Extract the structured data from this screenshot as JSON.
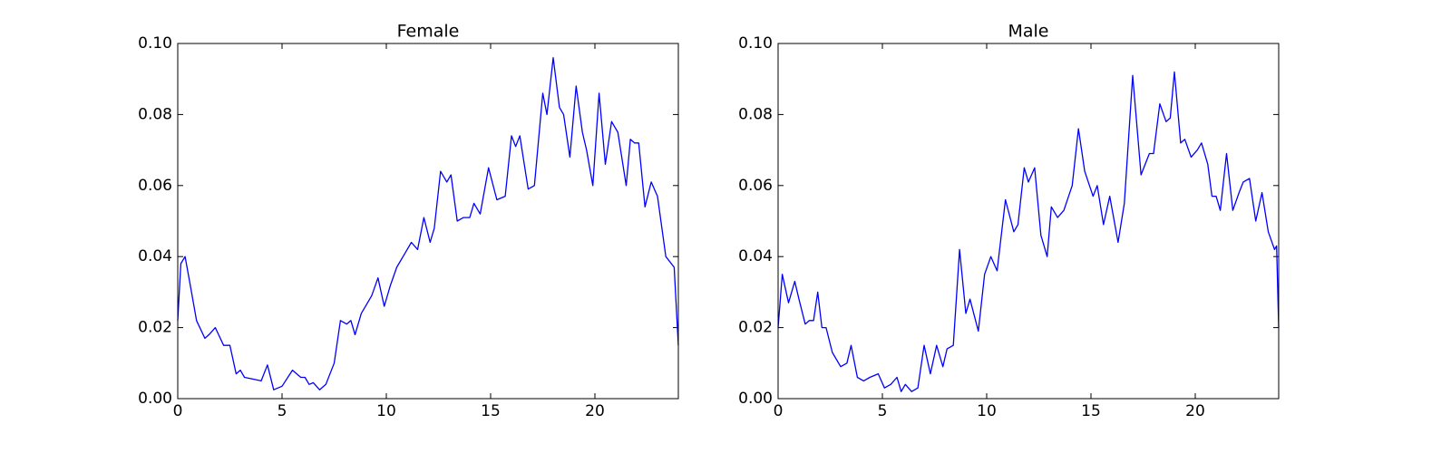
{
  "chart_data": [
    {
      "type": "line",
      "title": "Female",
      "color": "#0000ff",
      "xlim": [
        0,
        24
      ],
      "ylim": [
        0,
        0.1
      ],
      "xticks": [
        0,
        5,
        10,
        15,
        20
      ],
      "yticks": [
        {
          "value": 0,
          "label": "0.00"
        },
        {
          "value": 0.02,
          "label": "0.02"
        },
        {
          "value": 0.04,
          "label": "0.04"
        },
        {
          "value": 0.06,
          "label": "0.06"
        },
        {
          "value": 0.08,
          "label": "0.08"
        },
        {
          "value": 0.1,
          "label": "0.10"
        }
      ],
      "x": [
        0,
        0.15,
        0.35,
        0.6,
        0.9,
        1.3,
        1.5,
        1.8,
        2.2,
        2.5,
        2.8,
        3.0,
        3.2,
        3.6,
        4.0,
        4.3,
        4.6,
        5.0,
        5.5,
        5.9,
        6.1,
        6.3,
        6.5,
        6.8,
        7.1,
        7.5,
        7.8,
        8.1,
        8.3,
        8.5,
        8.8,
        9.1,
        9.3,
        9.6,
        9.9,
        10.2,
        10.5,
        10.9,
        11.2,
        11.5,
        11.8,
        12.1,
        12.3,
        12.6,
        12.9,
        13.1,
        13.4,
        13.7,
        14.0,
        14.2,
        14.5,
        14.9,
        15.3,
        15.7,
        16.0,
        16.2,
        16.4,
        16.8,
        17.1,
        17.5,
        17.7,
        18.0,
        18.3,
        18.5,
        18.8,
        19.1,
        19.4,
        19.6,
        19.9,
        20.2,
        20.5,
        20.8,
        21.1,
        21.5,
        21.7,
        21.9,
        22.1,
        22.4,
        22.7,
        23.0,
        23.4,
        23.8,
        24.0
      ],
      "values": [
        0.022,
        0.038,
        0.04,
        0.032,
        0.022,
        0.017,
        0.018,
        0.02,
        0.015,
        0.015,
        0.007,
        0.008,
        0.006,
        0.0055,
        0.005,
        0.0095,
        0.0025,
        0.0035,
        0.008,
        0.006,
        0.006,
        0.004,
        0.0045,
        0.0025,
        0.004,
        0.01,
        0.022,
        0.021,
        0.022,
        0.018,
        0.024,
        0.027,
        0.029,
        0.034,
        0.026,
        0.032,
        0.037,
        0.041,
        0.044,
        0.042,
        0.051,
        0.044,
        0.048,
        0.064,
        0.061,
        0.063,
        0.05,
        0.051,
        0.051,
        0.055,
        0.052,
        0.065,
        0.056,
        0.057,
        0.074,
        0.071,
        0.074,
        0.059,
        0.06,
        0.086,
        0.08,
        0.096,
        0.082,
        0.08,
        0.068,
        0.088,
        0.075,
        0.07,
        0.06,
        0.086,
        0.066,
        0.078,
        0.075,
        0.06,
        0.073,
        0.072,
        0.072,
        0.054,
        0.061,
        0.057,
        0.04,
        0.037,
        0.015
      ]
    },
    {
      "type": "line",
      "title": "Male",
      "color": "#0000ff",
      "xlim": [
        0,
        24
      ],
      "ylim": [
        0,
        0.1
      ],
      "xticks": [
        0,
        5,
        10,
        15,
        20
      ],
      "yticks": [
        {
          "value": 0,
          "label": "0.00"
        },
        {
          "value": 0.02,
          "label": "0.02"
        },
        {
          "value": 0.04,
          "label": "0.04"
        },
        {
          "value": 0.06,
          "label": "0.06"
        },
        {
          "value": 0.08,
          "label": "0.08"
        },
        {
          "value": 0.1,
          "label": "0.10"
        }
      ],
      "x": [
        0,
        0.2,
        0.5,
        0.8,
        1.0,
        1.3,
        1.5,
        1.7,
        1.9,
        2.1,
        2.3,
        2.6,
        3.0,
        3.3,
        3.5,
        3.8,
        4.1,
        4.4,
        4.8,
        5.1,
        5.4,
        5.7,
        5.9,
        6.1,
        6.4,
        6.7,
        7.0,
        7.3,
        7.6,
        7.9,
        8.1,
        8.4,
        8.7,
        9.0,
        9.2,
        9.6,
        9.9,
        10.2,
        10.5,
        10.9,
        11.3,
        11.5,
        11.8,
        12.0,
        12.3,
        12.6,
        12.9,
        13.1,
        13.4,
        13.7,
        14.1,
        14.4,
        14.7,
        15.1,
        15.3,
        15.6,
        15.9,
        16.3,
        16.6,
        17.0,
        17.4,
        17.8,
        18.0,
        18.3,
        18.6,
        18.8,
        19.0,
        19.3,
        19.5,
        19.8,
        20.1,
        20.3,
        20.6,
        20.8,
        21.0,
        21.2,
        21.5,
        21.8,
        22.1,
        22.3,
        22.6,
        22.9,
        23.2,
        23.5,
        23.8,
        23.9,
        24.0
      ],
      "values": [
        0.02,
        0.035,
        0.027,
        0.033,
        0.028,
        0.021,
        0.022,
        0.022,
        0.03,
        0.02,
        0.02,
        0.013,
        0.009,
        0.01,
        0.015,
        0.006,
        0.005,
        0.006,
        0.007,
        0.003,
        0.004,
        0.006,
        0.002,
        0.004,
        0.002,
        0.003,
        0.015,
        0.007,
        0.015,
        0.009,
        0.014,
        0.015,
        0.042,
        0.024,
        0.028,
        0.019,
        0.035,
        0.04,
        0.036,
        0.056,
        0.047,
        0.049,
        0.065,
        0.061,
        0.065,
        0.046,
        0.04,
        0.054,
        0.051,
        0.053,
        0.06,
        0.076,
        0.064,
        0.057,
        0.06,
        0.049,
        0.057,
        0.044,
        0.055,
        0.091,
        0.063,
        0.069,
        0.069,
        0.083,
        0.078,
        0.079,
        0.092,
        0.072,
        0.073,
        0.068,
        0.07,
        0.072,
        0.066,
        0.057,
        0.057,
        0.053,
        0.069,
        0.053,
        0.058,
        0.061,
        0.062,
        0.05,
        0.058,
        0.047,
        0.042,
        0.043,
        0.02
      ]
    }
  ]
}
